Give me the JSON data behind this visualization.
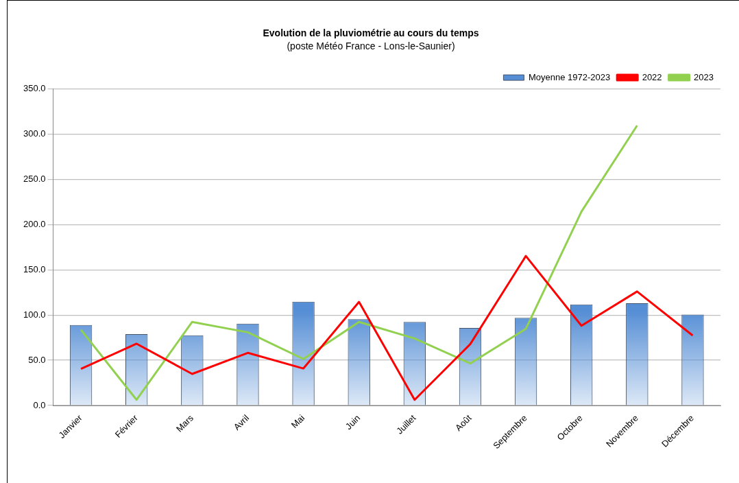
{
  "chart_data": {
    "type": "bar",
    "title": "Evolution de la pluviométrie au cours du temps",
    "subtitle": "(poste Météo France - Lons-le-Saunier)",
    "categories": [
      "Janvier",
      "Février",
      "Mars",
      "Avril",
      "Mai",
      "Juin",
      "Juillet",
      "Août",
      "Septembre",
      "Octobre",
      "Novembre",
      "Décembre"
    ],
    "series": [
      {
        "name": "Moyenne 1972-2023",
        "color": "#558ed5",
        "values": [
          88.9,
          78.8,
          77.6,
          90.5,
          114.8,
          95.4,
          92.4,
          85.8,
          97.0,
          111.7,
          113.1,
          100.5
        ]
      },
      {
        "name": "2022",
        "type": "line",
        "color": "#ff0000",
        "values": [
          40.5,
          68.3,
          34.9,
          58.2,
          40.9,
          114.5,
          6.3,
          67.8,
          165.3,
          88.2,
          126.0,
          77.4
        ]
      },
      {
        "name": "2023",
        "type": "line",
        "color": "#92d050",
        "values": [
          83.7,
          6.3,
          92.4,
          80.9,
          51.4,
          92.4,
          74.1,
          46.5,
          84.7,
          214.4,
          309.5,
          null
        ]
      }
    ],
    "ylim": [
      0,
      350
    ],
    "yticks": [
      {
        "value": 0,
        "label": "0.0"
      },
      {
        "value": 50,
        "label": "50.0"
      },
      {
        "value": 100,
        "label": "100.0"
      },
      {
        "value": 150,
        "label": "150.0"
      },
      {
        "value": 200,
        "label": "200.0"
      },
      {
        "value": 250,
        "label": "250.0"
      },
      {
        "value": 300,
        "label": "300.0"
      },
      {
        "value": 350,
        "label": "350.0"
      }
    ],
    "grid": "y",
    "legend": "top right",
    "marker": "none",
    "line_style": "solid"
  }
}
